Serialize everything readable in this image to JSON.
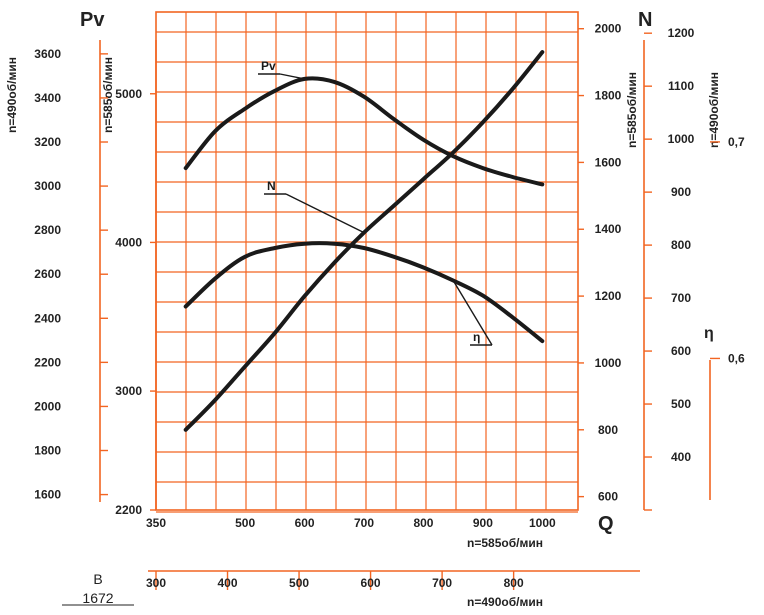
{
  "chart_data": {
    "type": "line",
    "x_axes": [
      {
        "label": "n=585об/мин",
        "letter": "Q",
        "range": [
          350,
          1060
        ],
        "ticks": [
          350,
          500,
          600,
          700,
          800,
          900,
          1000
        ]
      },
      {
        "label": "n=490об/мин",
        "range": [
          300,
          890
        ],
        "ticks": [
          300,
          400,
          500,
          600,
          700,
          800
        ]
      }
    ],
    "y_axes": {
      "pv_490": {
        "label": "n=490об/мин",
        "ticks": [
          1600,
          1800,
          2000,
          2200,
          2400,
          2600,
          2800,
          3000,
          3200,
          3400,
          3600
        ],
        "range": [
          1530,
          3790
        ]
      },
      "pv_585": {
        "label": "n=585об/мин",
        "ticks": [
          2200,
          3000,
          4000,
          5000
        ],
        "range": [
          2200,
          5550
        ]
      },
      "n_585": {
        "label": "n=585об/мин",
        "ticks": [
          600,
          800,
          1000,
          1200,
          1400,
          1600,
          1800,
          2000
        ],
        "range": [
          560,
          2050
        ]
      },
      "n_490": {
        "label": "n=490об/мин",
        "ticks": [
          300,
          400,
          500,
          600,
          700,
          800,
          900,
          1000,
          1100,
          1200
        ],
        "range": [
          300,
          1240
        ]
      },
      "eta": {
        "ticks": [
          "0,7",
          "0,6"
        ],
        "range": [
          0.53,
          0.76
        ]
      }
    },
    "axis_letters": {
      "pv": "Pv",
      "n": "N",
      "eta": "η"
    },
    "series": [
      {
        "name": "Pv",
        "axis": "pv_585",
        "x": [
          400,
          450,
          500,
          550,
          600,
          650,
          700,
          750,
          800,
          850,
          900,
          950,
          1000
        ],
        "y": [
          4500,
          4750,
          4900,
          5020,
          5100,
          5080,
          4980,
          4830,
          4690,
          4580,
          4500,
          4440,
          4390
        ]
      },
      {
        "name": "N",
        "axis": "n_585",
        "x": [
          400,
          450,
          500,
          550,
          600,
          650,
          700,
          750,
          800,
          850,
          900,
          950,
          1000
        ],
        "y": [
          800,
          890,
          990,
          1090,
          1200,
          1300,
          1390,
          1470,
          1550,
          1630,
          1720,
          1820,
          1930
        ]
      },
      {
        "name": "η",
        "axis": "eta",
        "x": [
          400,
          450,
          500,
          550,
          600,
          650,
          700,
          750,
          800,
          850,
          900,
          950,
          1000
        ],
        "y": [
          0.624,
          0.637,
          0.647,
          0.651,
          0.653,
          0.653,
          0.651,
          0.647,
          0.642,
          0.636,
          0.629,
          0.619,
          0.608
        ]
      }
    ],
    "grid": true,
    "colors": {
      "grid": "#f26522",
      "curve": "#1a1a1a",
      "text": "#222222"
    }
  },
  "footer": {
    "dim_label": "B",
    "dim_value": "1672"
  }
}
